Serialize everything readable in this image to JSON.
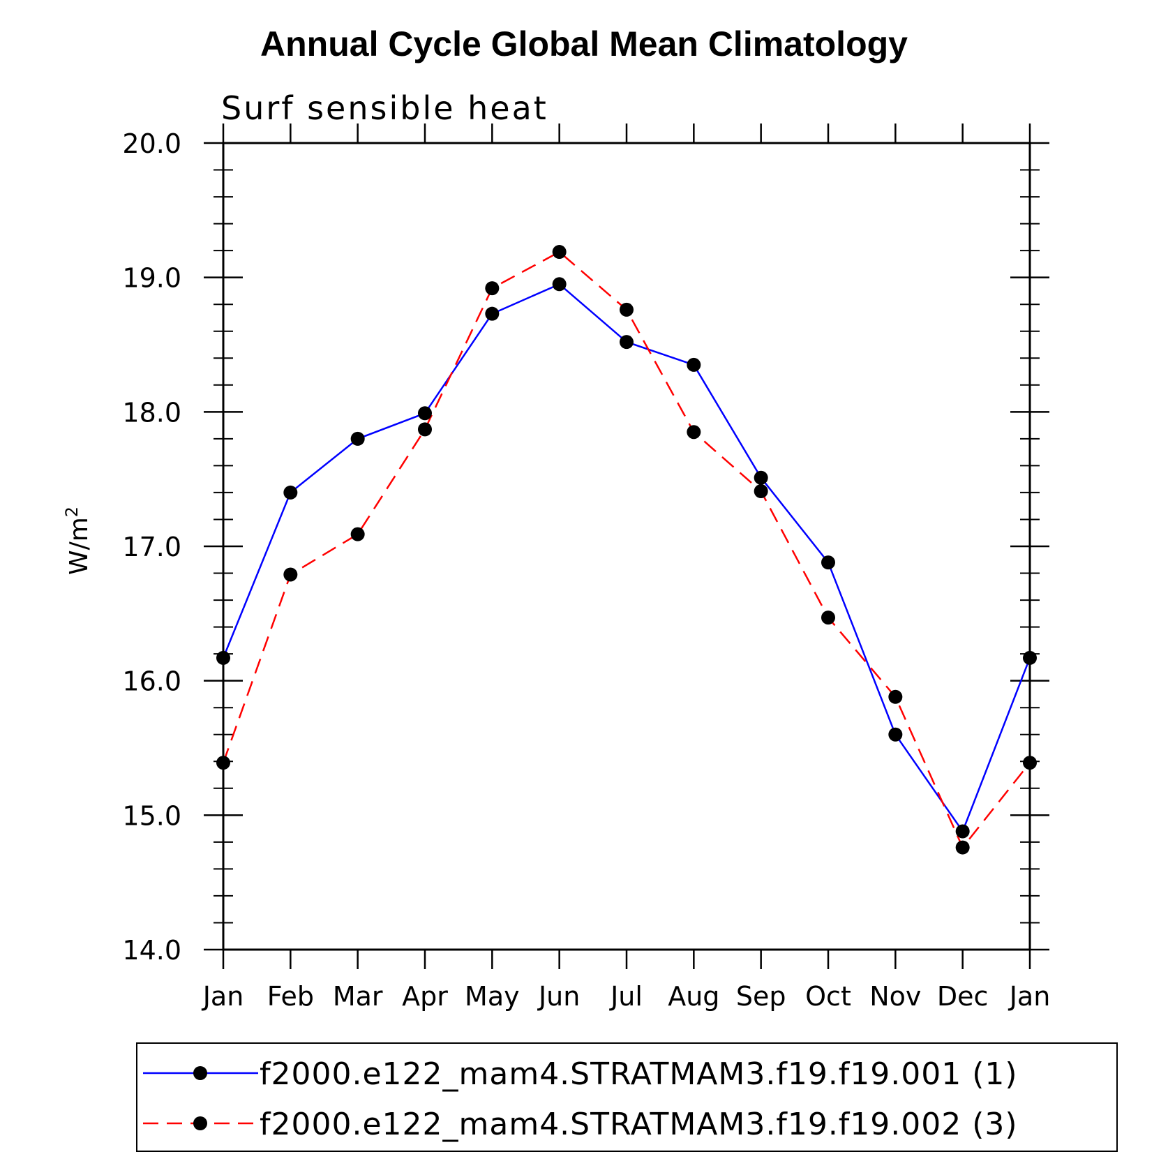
{
  "chart_data": {
    "type": "line",
    "title": "Annual Cycle Global Mean Climatology",
    "subtitle": "Surf sensible heat",
    "ylabel": "W/m",
    "ylabel_superscript": "2",
    "xlabel": "",
    "categories": [
      "Jan",
      "Feb",
      "Mar",
      "Apr",
      "May",
      "Jun",
      "Jul",
      "Aug",
      "Sep",
      "Oct",
      "Nov",
      "Dec",
      "Jan"
    ],
    "ylim": [
      14.0,
      20.0
    ],
    "yticks": [
      "14.0",
      "15.0",
      "16.0",
      "17.0",
      "18.0",
      "19.0",
      "20.0"
    ],
    "ytick_values": [
      14,
      15,
      16,
      17,
      18,
      19,
      20
    ],
    "y_minor_step": 0.2,
    "series": [
      {
        "name": "f2000.e122_mam4.STRATMAM3.f19.f19.001 (1)",
        "color": "#0000ff",
        "line_style": "solid",
        "values": [
          16.17,
          17.4,
          17.8,
          17.99,
          18.73,
          18.95,
          18.52,
          18.35,
          17.51,
          16.88,
          15.6,
          14.88,
          16.17
        ]
      },
      {
        "name": "f2000.e122_mam4.STRATMAM3.f19.f19.002 (3)",
        "color": "#ff0000",
        "line_style": "dashed",
        "values": [
          15.39,
          16.79,
          17.09,
          17.87,
          18.92,
          19.19,
          18.76,
          17.85,
          17.41,
          16.47,
          15.88,
          14.76,
          15.39
        ]
      }
    ],
    "legend_position": "bottom"
  }
}
